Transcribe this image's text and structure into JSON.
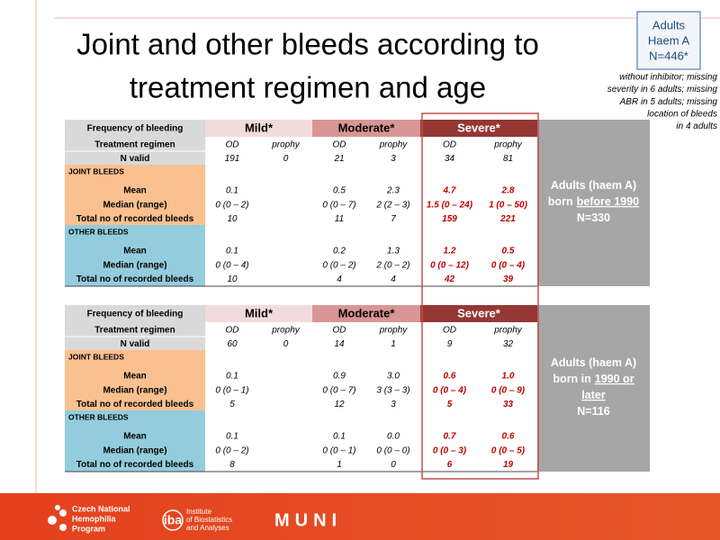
{
  "title": {
    "lines": [
      "Joint and other bleeds according to",
      "treatment regimen and age"
    ]
  },
  "badge": {
    "lines": [
      "Adults",
      "Haem A",
      "N=446*"
    ]
  },
  "note": {
    "lines": [
      "without inhibitor; missing",
      "severity in 6 adults; missing",
      "ABR in 5 adults; missing",
      "location of bleeds",
      "in 4 adults"
    ]
  },
  "tables": [
    {
      "header": [
        "Frequency of bleeding",
        "Mild*",
        "Moderate*",
        "Severe*"
      ],
      "regimen": [
        "Treatment regimen",
        "OD",
        "prophy",
        "OD",
        "prophy",
        "OD",
        "prophy"
      ],
      "n_valid": [
        "N valid",
        "191",
        "0",
        "21",
        "3",
        "34",
        "81"
      ],
      "joint": {
        "title": "JOINT BLEEDS",
        "rows": [
          [
            "Mean",
            "0.1",
            null,
            "0.5",
            "2.3",
            "4.7",
            "2.8"
          ],
          [
            "Median (range)",
            "0 (0 – 2)",
            null,
            "0 (0 – 7)",
            "2 (2 – 3)",
            "1.5 (0 – 24)",
            "1 (0 – 50)"
          ],
          [
            "Total no of recorded bleeds",
            "10",
            null,
            "11",
            "7",
            "159",
            "221"
          ]
        ]
      },
      "other": {
        "title": "OTHER BLEEDS",
        "rows": [
          [
            "Mean",
            "0.1",
            null,
            "0.2",
            "1.3",
            "1.2",
            "0.5"
          ],
          [
            "Median (range)",
            "0 (0 – 4)",
            null,
            "0 (0 – 2)",
            "2 (0 – 2)",
            "0 (0 – 12)",
            "0 (0 – 4)"
          ],
          [
            "Total no of recorded bleeds",
            "10",
            null,
            "4",
            "4",
            "42",
            "39"
          ]
        ]
      },
      "side": [
        [
          {
            "text": "Adults (haem A)"
          }
        ],
        [
          {
            "text": "born"
          },
          {
            "text": "before 1990",
            "underline": true
          }
        ],
        [
          {
            "text": "N=330"
          }
        ]
      ]
    },
    {
      "header": [
        "Frequency of bleeding",
        "Mild*",
        "Moderate*",
        "Severe*"
      ],
      "regimen": [
        "Treatment regimen",
        "OD",
        "prophy",
        "OD",
        "prophy",
        "OD",
        "prophy"
      ],
      "n_valid": [
        "N valid",
        "60",
        "0",
        "14",
        "1",
        "9",
        "32"
      ],
      "joint": {
        "title": "JOINT BLEEDS",
        "rows": [
          [
            "Mean",
            "0.1",
            null,
            "0.9",
            "3.0",
            "0.6",
            "1.0"
          ],
          [
            "Median (range)",
            "0 (0 – 1)",
            null,
            "0 (0 – 7)",
            "3 (3 – 3)",
            "0 (0 – 4)",
            "0 (0 – 9)"
          ],
          [
            "Total no of recorded bleeds",
            "5",
            null,
            "12",
            "3",
            "5",
            "33"
          ]
        ]
      },
      "other": {
        "title": "OTHER BLEEDS",
        "rows": [
          [
            "Mean",
            "0.1",
            null,
            "0.1",
            "0.0",
            "0.7",
            "0.6"
          ],
          [
            "Median (range)",
            "0 (0 – 2)",
            null,
            "0 (0 – 1)",
            "0 (0 – 0)",
            "0 (0 – 3)",
            "0 (0 – 5)"
          ],
          [
            "Total no of recorded bleeds",
            "8",
            null,
            "1",
            "0",
            "6",
            "19"
          ]
        ]
      },
      "side": [
        [
          {
            "text": "Adults (haem A)"
          }
        ],
        [
          {
            "text": "born in"
          },
          {
            "text": "1990 or",
            "underline": true
          }
        ],
        [
          {
            "text": "later",
            "underline": true
          }
        ],
        [
          {
            "text": "N=116"
          }
        ]
      ]
    }
  ],
  "footer": {
    "cnhp": [
      "Czech National",
      "Hemophilia",
      "Program"
    ],
    "iba": "iba",
    "institute": [
      "Institute",
      "of Biostatistics",
      "and Analyses"
    ],
    "muni": "MUNI"
  }
}
